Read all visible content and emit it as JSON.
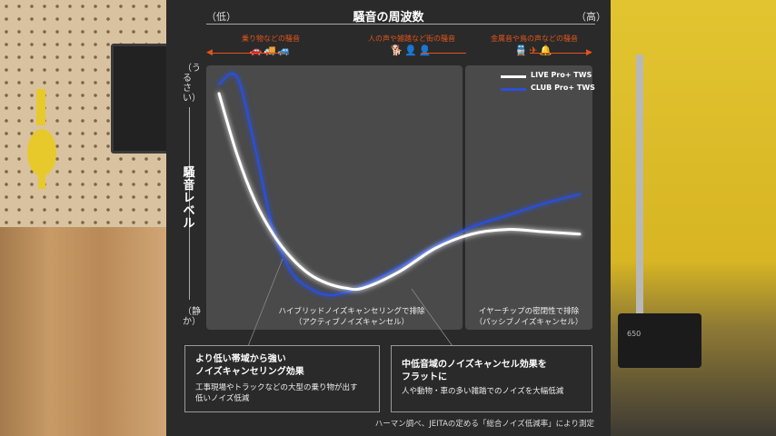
{
  "header": {
    "title": "騒音の周波数",
    "low": "（低）",
    "high": "（高）"
  },
  "categories": [
    {
      "label": "乗り物などの騒音",
      "icons": "🚗🚚🚙"
    },
    {
      "label": "人の声や雑踏など街の騒音",
      "icons": "🐕👤👤"
    },
    {
      "label": "金属音や鳥の声などの騒音",
      "icons": "🚆✈🔔"
    }
  ],
  "yaxis": {
    "top": "（うるさい）",
    "title": "騒音レベル",
    "bottom": "（静か）"
  },
  "zones": {
    "active": [
      "ハイブリッドノイズキャンセリングで排除",
      "（アクティブノイズキャンセル）"
    ],
    "passive": [
      "イヤーチップの密閉性で排除",
      "（パッシブノイズキャンセル）"
    ]
  },
  "boxes": {
    "left_title": [
      "より低い帯域から強い",
      "ノイズキャンセリング効果"
    ],
    "left_body": [
      "工事現場やトラックなどの大型の乗り物が出す",
      "低いノイズ低減"
    ],
    "right_title": [
      "中低音域のノイズキャンセル効果を",
      "フラットに"
    ],
    "right_body": [
      "人や動物・車の多い雑踏でのノイズを大幅低減"
    ]
  },
  "footnote": "ハーマン調べ、JEITAの定める「総合ノイズ低減率」により測定",
  "chart_data": {
    "type": "line",
    "title": "騒音の周波数",
    "xlabel": "騒音の周波数",
    "ylabel": "騒音レベル",
    "x": [
      0.0,
      0.05,
      0.1,
      0.15,
      0.2,
      0.25,
      0.3,
      0.35,
      0.4,
      0.5,
      0.6,
      0.7,
      0.8,
      0.9,
      1.0
    ],
    "series": [
      {
        "name": "LIVE Pro+ TWS",
        "color": "#ffffff",
        "values": [
          0.88,
          0.62,
          0.42,
          0.28,
          0.18,
          0.11,
          0.07,
          0.05,
          0.05,
          0.12,
          0.22,
          0.28,
          0.3,
          0.29,
          0.28
        ]
      },
      {
        "name": "CLUB Pro+ TWS",
        "color": "#2b4fd6",
        "values": [
          0.92,
          0.95,
          0.65,
          0.3,
          0.12,
          0.05,
          0.02,
          0.03,
          0.06,
          0.14,
          0.23,
          0.31,
          0.36,
          0.41,
          0.45
        ]
      }
    ],
    "ylim": [
      0,
      1
    ],
    "xlim": [
      0,
      1
    ],
    "grid": false,
    "legend": "top-right"
  }
}
